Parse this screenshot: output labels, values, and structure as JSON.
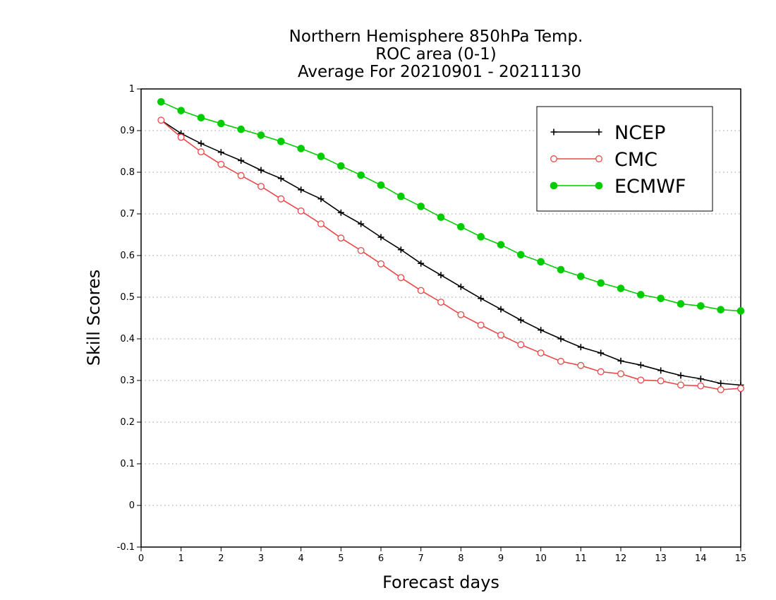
{
  "chart_data": {
    "type": "line",
    "title_lines": [
      "Northern Hemisphere 850hPa Temp.",
      "ROC area (0-1)",
      "Average For 20210901 - 20211130"
    ],
    "xlabel": "Forecast days",
    "ylabel": "Skill Scores",
    "xlim": [
      0,
      15
    ],
    "ylim": [
      -0.1,
      1
    ],
    "xticks": [
      0,
      1,
      2,
      3,
      4,
      5,
      6,
      7,
      8,
      9,
      10,
      11,
      12,
      13,
      14,
      15
    ],
    "yticks": [
      -0.1,
      0,
      0.1,
      0.2,
      0.3,
      0.4,
      0.5,
      0.6,
      0.7,
      0.8,
      0.9,
      1
    ],
    "ytick_labels": [
      "-0.1",
      "0",
      "0.1",
      "0.2",
      "0.3",
      "0.4",
      "0.5",
      "0.6",
      "0.7",
      "0.8",
      "0.9",
      "1"
    ],
    "grid": "horizontal-dotted",
    "legend_position": "top-right",
    "x": [
      0.5,
      1,
      1.5,
      2,
      2.5,
      3,
      3.5,
      4,
      4.5,
      5,
      5.5,
      6,
      6.5,
      7,
      7.5,
      8,
      8.5,
      9,
      9.5,
      10,
      10.5,
      11,
      11.5,
      12,
      12.5,
      13,
      13.5,
      14,
      14.5,
      15
    ],
    "series": [
      {
        "name": "NCEP",
        "color": "#000000",
        "marker": "plus",
        "values": [
          0.925,
          0.893,
          0.869,
          0.848,
          0.828,
          0.805,
          0.785,
          0.758,
          0.736,
          0.703,
          0.676,
          0.644,
          0.614,
          0.581,
          0.553,
          0.525,
          0.497,
          0.471,
          0.445,
          0.421,
          0.4,
          0.38,
          0.366,
          0.347,
          0.337,
          0.324,
          0.312,
          0.304,
          0.293,
          0.289
        ]
      },
      {
        "name": "CMC",
        "color": "#e84848",
        "marker": "open-circle",
        "values": [
          0.925,
          0.884,
          0.849,
          0.819,
          0.792,
          0.766,
          0.736,
          0.707,
          0.676,
          0.642,
          0.612,
          0.58,
          0.547,
          0.516,
          0.488,
          0.458,
          0.433,
          0.409,
          0.386,
          0.366,
          0.346,
          0.336,
          0.321,
          0.316,
          0.301,
          0.299,
          0.289,
          0.287,
          0.278,
          0.281
        ]
      },
      {
        "name": "ECMWF",
        "color": "#00cc00",
        "marker": "filled-circle",
        "values": [
          0.969,
          0.948,
          0.931,
          0.917,
          0.903,
          0.889,
          0.874,
          0.857,
          0.838,
          0.815,
          0.793,
          0.769,
          0.742,
          0.718,
          0.692,
          0.669,
          0.645,
          0.626,
          0.602,
          0.585,
          0.566,
          0.55,
          0.534,
          0.521,
          0.506,
          0.497,
          0.484,
          0.479,
          0.47,
          0.467
        ]
      }
    ]
  }
}
